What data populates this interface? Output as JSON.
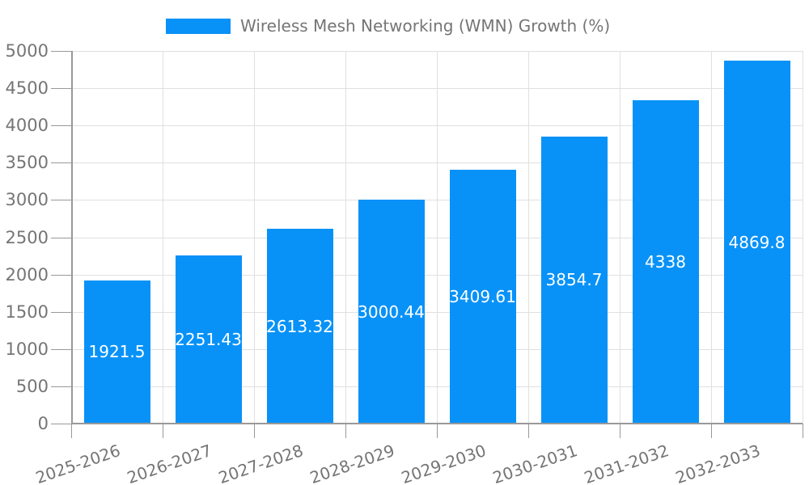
{
  "legend": {
    "label": "Wireless Mesh Networking (WMN) Growth (%)"
  },
  "colors": {
    "bar": "#0892f8",
    "grid": "#e0e0e0",
    "axis": "#999999",
    "tick": "#999999",
    "tick_text": "#757575",
    "value_text": "#ffffff",
    "background": "#ffffff"
  },
  "chart_data": {
    "type": "bar",
    "title": "",
    "xlabel": "",
    "ylabel": "",
    "categories": [
      "2025-2026",
      "2026-2027",
      "2027-2028",
      "2028-2029",
      "2029-2030",
      "2030-2031",
      "2031-2032",
      "2032-2033"
    ],
    "values": [
      1921.5,
      2251.43,
      2613.32,
      3000.44,
      3409.61,
      3854.7,
      4338,
      4869.8
    ],
    "value_labels": [
      "1921.5",
      "2251.43",
      "2613.32",
      "3000.44",
      "3409.61",
      "3854.7",
      "4338",
      "4869.8"
    ],
    "series_name": "Wireless Mesh Networking (WMN) Growth (%)",
    "ylim": [
      0,
      5000
    ],
    "yticks": [
      0,
      500,
      1000,
      1500,
      2000,
      2500,
      3000,
      3500,
      4000,
      4500,
      5000
    ],
    "grid": true,
    "legend_position": "top-center",
    "x_label_rotation_deg": -19
  }
}
